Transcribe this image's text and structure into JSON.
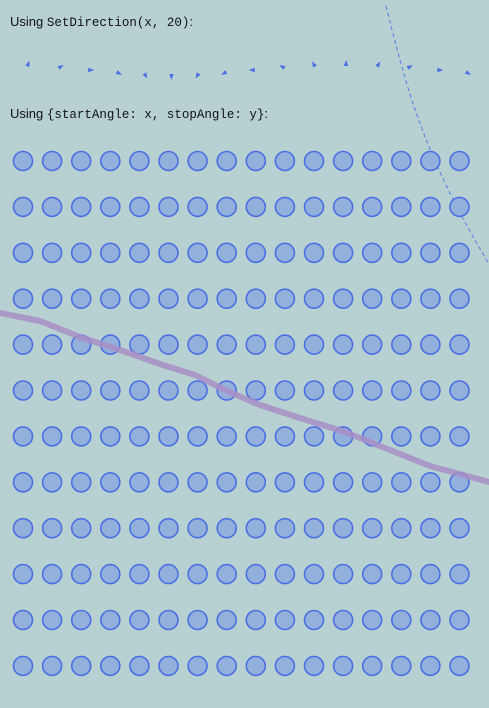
{
  "demo": {
    "label1_prefix": "Using",
    "label1_code": "SetDirection(x, 20)",
    "label1_suffix": ":",
    "label2_prefix": "Using",
    "label2_code": "{startAngle: x, stopAngle: y}",
    "label2_suffix": ":"
  },
  "colors": {
    "background": "#b7d0d1",
    "shape_fill": "#93b0dc",
    "shape_stroke": "#4a6fe3",
    "arrow": "#4a6fe3",
    "path_line": "#a88ec6",
    "dashed_line": "#5b7ae6"
  }
}
